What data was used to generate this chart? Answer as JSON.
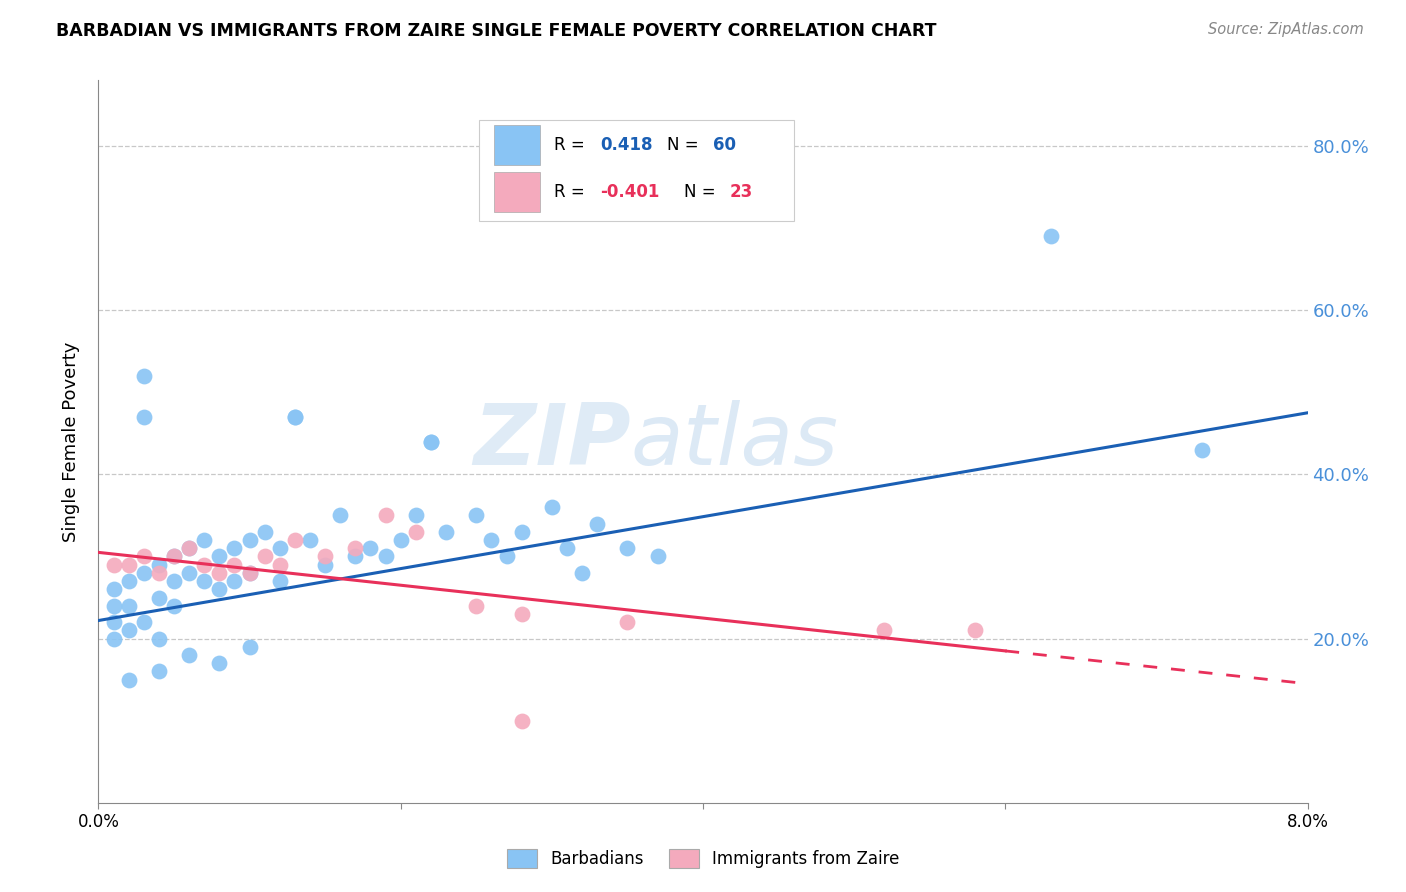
{
  "title": "BARBADIAN VS IMMIGRANTS FROM ZAIRE SINGLE FEMALE POVERTY CORRELATION CHART",
  "source": "Source: ZipAtlas.com",
  "ylabel": "Single Female Poverty",
  "color_barbadian": "#89C4F4",
  "color_zaire": "#F4AABD",
  "color_line_barbadian": "#1A5FB4",
  "color_line_zaire": "#E8305A",
  "watermark_zip": "ZIP",
  "watermark_atlas": "atlas",
  "background_color": "#FFFFFF",
  "grid_color": "#C8C8C8",
  "right_axis_color": "#4A90D9",
  "xlim": [
    0.0,
    0.08
  ],
  "ylim": [
    0.0,
    0.88
  ],
  "barbadian_x": [
    0.001,
    0.001,
    0.001,
    0.001,
    0.002,
    0.002,
    0.002,
    0.003,
    0.003,
    0.003,
    0.004,
    0.004,
    0.004,
    0.005,
    0.005,
    0.005,
    0.006,
    0.006,
    0.007,
    0.007,
    0.008,
    0.008,
    0.009,
    0.009,
    0.01,
    0.01,
    0.011,
    0.012,
    0.012,
    0.013,
    0.014,
    0.015,
    0.016,
    0.017,
    0.018,
    0.019,
    0.02,
    0.021,
    0.022,
    0.023,
    0.025,
    0.026,
    0.027,
    0.028,
    0.03,
    0.031,
    0.032,
    0.033,
    0.035,
    0.037,
    0.003,
    0.013,
    0.022,
    0.063,
    0.073,
    0.002,
    0.004,
    0.006,
    0.008,
    0.01
  ],
  "barbadian_y": [
    0.26,
    0.24,
    0.22,
    0.2,
    0.27,
    0.24,
    0.21,
    0.52,
    0.28,
    0.22,
    0.29,
    0.25,
    0.2,
    0.3,
    0.27,
    0.24,
    0.31,
    0.28,
    0.32,
    0.27,
    0.3,
    0.26,
    0.31,
    0.27,
    0.32,
    0.28,
    0.33,
    0.31,
    0.27,
    0.47,
    0.32,
    0.29,
    0.35,
    0.3,
    0.31,
    0.3,
    0.32,
    0.35,
    0.44,
    0.33,
    0.35,
    0.32,
    0.3,
    0.33,
    0.36,
    0.31,
    0.28,
    0.34,
    0.31,
    0.3,
    0.47,
    0.47,
    0.44,
    0.69,
    0.43,
    0.15,
    0.16,
    0.18,
    0.17,
    0.19
  ],
  "zaire_x": [
    0.001,
    0.002,
    0.003,
    0.004,
    0.005,
    0.006,
    0.007,
    0.008,
    0.009,
    0.01,
    0.011,
    0.012,
    0.013,
    0.015,
    0.017,
    0.019,
    0.021,
    0.025,
    0.028,
    0.035,
    0.052,
    0.058,
    0.028
  ],
  "zaire_y": [
    0.29,
    0.29,
    0.3,
    0.28,
    0.3,
    0.31,
    0.29,
    0.28,
    0.29,
    0.28,
    0.3,
    0.29,
    0.32,
    0.3,
    0.31,
    0.35,
    0.33,
    0.24,
    0.1,
    0.22,
    0.21,
    0.21,
    0.23
  ],
  "line_blue_x0": 0.0,
  "line_blue_y0": 0.222,
  "line_blue_x1": 0.08,
  "line_blue_y1": 0.475,
  "line_pink_solid_x0": 0.0,
  "line_pink_solid_y0": 0.305,
  "line_pink_solid_x1": 0.06,
  "line_pink_solid_y1": 0.185,
  "line_pink_dash_x0": 0.06,
  "line_pink_dash_y0": 0.185,
  "line_pink_dash_x1": 0.08,
  "line_pink_dash_y1": 0.145
}
